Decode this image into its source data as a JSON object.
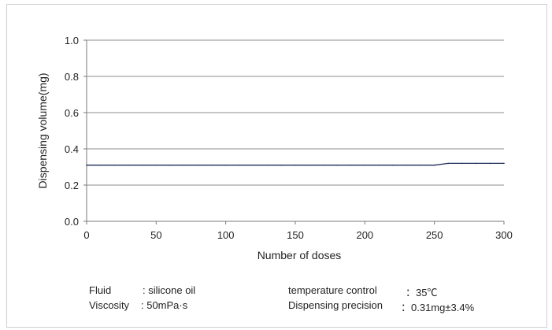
{
  "chart_data": {
    "type": "line",
    "xlabel": "Number of doses",
    "ylabel": "Dispensing volume(mg)",
    "xlim": [
      0,
      300
    ],
    "ylim": [
      0,
      1.0
    ],
    "x_ticks": [
      "0",
      "50",
      "100",
      "150",
      "200",
      "250",
      "300"
    ],
    "y_ticks": [
      "0.0",
      "0.2",
      "0.4",
      "0.6",
      "0.8",
      "1.0"
    ],
    "grid": "horizontal",
    "series": [
      {
        "color": "#1f2d5a",
        "x": [
          0,
          10,
          20,
          30,
          40,
          50,
          60,
          70,
          80,
          90,
          100,
          110,
          120,
          130,
          140,
          150,
          160,
          170,
          180,
          190,
          200,
          210,
          220,
          230,
          240,
          250,
          260,
          270,
          280,
          290,
          300
        ],
        "y": [
          0.31,
          0.31,
          0.31,
          0.31,
          0.31,
          0.31,
          0.31,
          0.31,
          0.31,
          0.31,
          0.31,
          0.31,
          0.31,
          0.31,
          0.31,
          0.31,
          0.31,
          0.31,
          0.31,
          0.31,
          0.31,
          0.31,
          0.31,
          0.31,
          0.31,
          0.31,
          0.32,
          0.32,
          0.32,
          0.32,
          0.32
        ]
      }
    ]
  },
  "notes": {
    "fluid_label": "Fluid",
    "fluid_value": ": silicone oil",
    "viscosity_label": "Viscosity",
    "viscosity_value": ": 50mPa·s",
    "temperature_label": "temperature control",
    "temperature_value": "：35℃",
    "precision_label": "Dispensing precision",
    "precision_value": "：0.31mg±3.4%"
  }
}
